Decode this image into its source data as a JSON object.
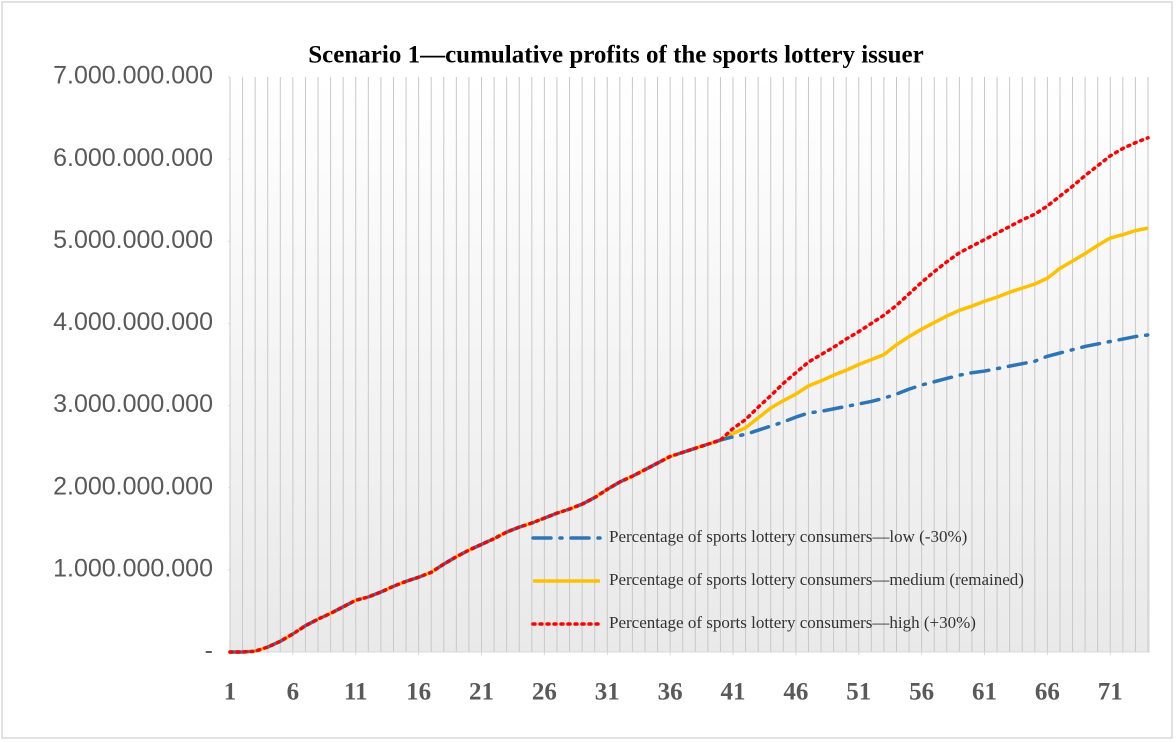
{
  "chart_data": {
    "type": "line",
    "title": "Scenario 1—cumulative profits of the sports lottery issuer",
    "x": [
      1,
      2,
      3,
      4,
      5,
      6,
      7,
      8,
      9,
      10,
      11,
      12,
      13,
      14,
      15,
      16,
      17,
      18,
      19,
      20,
      21,
      22,
      23,
      24,
      25,
      26,
      27,
      28,
      29,
      30,
      31,
      32,
      33,
      34,
      35,
      36,
      37,
      38,
      39,
      40,
      41,
      42,
      43,
      44,
      45,
      46,
      47,
      48,
      49,
      50,
      51,
      52,
      53,
      54,
      55,
      56,
      57,
      58,
      59,
      60,
      61,
      62,
      63,
      64,
      65,
      66,
      67,
      68,
      69,
      70,
      71,
      72,
      73,
      74
    ],
    "xlim": [
      1,
      74
    ],
    "xticks": [
      1,
      6,
      11,
      16,
      21,
      26,
      31,
      36,
      41,
      46,
      51,
      56,
      61,
      66,
      71
    ],
    "ylim": [
      0,
      7000000000
    ],
    "yticks": [
      {
        "value": 0,
        "label": "-"
      },
      {
        "value": 1000000000,
        "label": "1.000.000.000"
      },
      {
        "value": 2000000000,
        "label": "2.000.000.000"
      },
      {
        "value": 3000000000,
        "label": "3.000.000.000"
      },
      {
        "value": 4000000000,
        "label": "4.000.000.000"
      },
      {
        "value": 5000000000,
        "label": "5.000.000.000"
      },
      {
        "value": 6000000000,
        "label": "6.000.000.000"
      },
      {
        "value": 7000000000,
        "label": "7.000.000.000"
      }
    ],
    "vertical_grid": true,
    "legend_position": "bottom-right",
    "series": [
      {
        "name": "Percentage of sports lottery consumers—low (-30%)",
        "color": "#2e75b6",
        "line_style": "dashdot",
        "values": [
          0,
          0,
          10000000,
          60000000,
          130000000,
          220000000,
          320000000,
          400000000,
          470000000,
          550000000,
          630000000,
          670000000,
          730000000,
          800000000,
          860000000,
          910000000,
          970000000,
          1070000000,
          1160000000,
          1240000000,
          1310000000,
          1380000000,
          1460000000,
          1520000000,
          1570000000,
          1630000000,
          1690000000,
          1740000000,
          1800000000,
          1880000000,
          1980000000,
          2070000000,
          2140000000,
          2220000000,
          2300000000,
          2380000000,
          2430000000,
          2480000000,
          2530000000,
          2580000000,
          2620000000,
          2650000000,
          2700000000,
          2750000000,
          2800000000,
          2860000000,
          2910000000,
          2930000000,
          2960000000,
          2990000000,
          3020000000,
          3050000000,
          3090000000,
          3140000000,
          3200000000,
          3250000000,
          3290000000,
          3330000000,
          3370000000,
          3400000000,
          3420000000,
          3450000000,
          3480000000,
          3510000000,
          3540000000,
          3600000000,
          3640000000,
          3680000000,
          3720000000,
          3750000000,
          3780000000,
          3810000000,
          3840000000,
          3860000000
        ]
      },
      {
        "name": "Percentage of sports lottery consumers—medium (remained)",
        "color": "#ffc000",
        "line_style": "solid",
        "values": [
          0,
          0,
          10000000,
          60000000,
          130000000,
          220000000,
          320000000,
          400000000,
          470000000,
          550000000,
          630000000,
          670000000,
          730000000,
          800000000,
          860000000,
          910000000,
          970000000,
          1070000000,
          1160000000,
          1240000000,
          1310000000,
          1380000000,
          1460000000,
          1520000000,
          1570000000,
          1630000000,
          1690000000,
          1740000000,
          1800000000,
          1880000000,
          1980000000,
          2070000000,
          2140000000,
          2220000000,
          2300000000,
          2380000000,
          2430000000,
          2480000000,
          2530000000,
          2580000000,
          2660000000,
          2730000000,
          2850000000,
          2970000000,
          3060000000,
          3140000000,
          3240000000,
          3300000000,
          3370000000,
          3430000000,
          3500000000,
          3560000000,
          3620000000,
          3740000000,
          3840000000,
          3930000000,
          4010000000,
          4090000000,
          4160000000,
          4210000000,
          4270000000,
          4320000000,
          4380000000,
          4430000000,
          4480000000,
          4550000000,
          4670000000,
          4760000000,
          4850000000,
          4950000000,
          5040000000,
          5080000000,
          5130000000,
          5160000000
        ]
      },
      {
        "name": "Percentage of sports lottery consumers—high (+30%)",
        "color": "#ff0000",
        "line_style": "dotted",
        "values": [
          0,
          0,
          10000000,
          60000000,
          130000000,
          220000000,
          320000000,
          400000000,
          470000000,
          550000000,
          630000000,
          670000000,
          730000000,
          800000000,
          860000000,
          910000000,
          970000000,
          1070000000,
          1160000000,
          1240000000,
          1310000000,
          1380000000,
          1460000000,
          1520000000,
          1570000000,
          1630000000,
          1690000000,
          1740000000,
          1800000000,
          1880000000,
          1980000000,
          2070000000,
          2140000000,
          2220000000,
          2300000000,
          2380000000,
          2430000000,
          2480000000,
          2530000000,
          2580000000,
          2720000000,
          2830000000,
          2980000000,
          3120000000,
          3270000000,
          3400000000,
          3530000000,
          3620000000,
          3710000000,
          3810000000,
          3900000000,
          4000000000,
          4100000000,
          4220000000,
          4360000000,
          4500000000,
          4630000000,
          4750000000,
          4860000000,
          4940000000,
          5020000000,
          5100000000,
          5180000000,
          5260000000,
          5330000000,
          5430000000,
          5550000000,
          5670000000,
          5800000000,
          5920000000,
          6040000000,
          6130000000,
          6200000000,
          6260000000
        ]
      }
    ]
  }
}
